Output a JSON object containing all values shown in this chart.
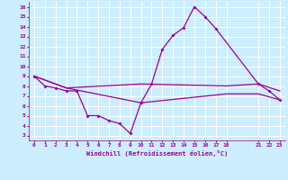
{
  "xlabel": "Windchill (Refroidissement éolien,°C)",
  "bg_color": "#cceeff",
  "grid_color": "#ffffff",
  "line_color": "#990099",
  "xlim": [
    -0.5,
    23.5
  ],
  "ylim": [
    2.5,
    16.5
  ],
  "yticks": [
    3,
    4,
    5,
    6,
    7,
    8,
    9,
    10,
    11,
    12,
    13,
    14,
    15,
    16
  ],
  "xticks": [
    0,
    1,
    2,
    3,
    4,
    5,
    6,
    7,
    8,
    9,
    10,
    11,
    12,
    13,
    14,
    15,
    16,
    17,
    18,
    21,
    22,
    23
  ],
  "line1_x": [
    0,
    1,
    2,
    3,
    4,
    5,
    6,
    7,
    8,
    9,
    10,
    11,
    12,
    13,
    14,
    15,
    16,
    17,
    21,
    22,
    23
  ],
  "line1_y": [
    9.0,
    8.0,
    7.8,
    7.5,
    7.5,
    5.0,
    5.0,
    4.5,
    4.2,
    3.2,
    6.3,
    8.2,
    11.7,
    13.1,
    13.9,
    16.0,
    15.0,
    13.8,
    8.2,
    7.5,
    6.6
  ],
  "line2_x": [
    0,
    3,
    10,
    18,
    21,
    23
  ],
  "line2_y": [
    9.0,
    7.8,
    8.2,
    8.0,
    8.2,
    7.5
  ],
  "line3_x": [
    0,
    3,
    10,
    18,
    21,
    23
  ],
  "line3_y": [
    9.0,
    7.8,
    6.3,
    7.2,
    7.2,
    6.6
  ]
}
